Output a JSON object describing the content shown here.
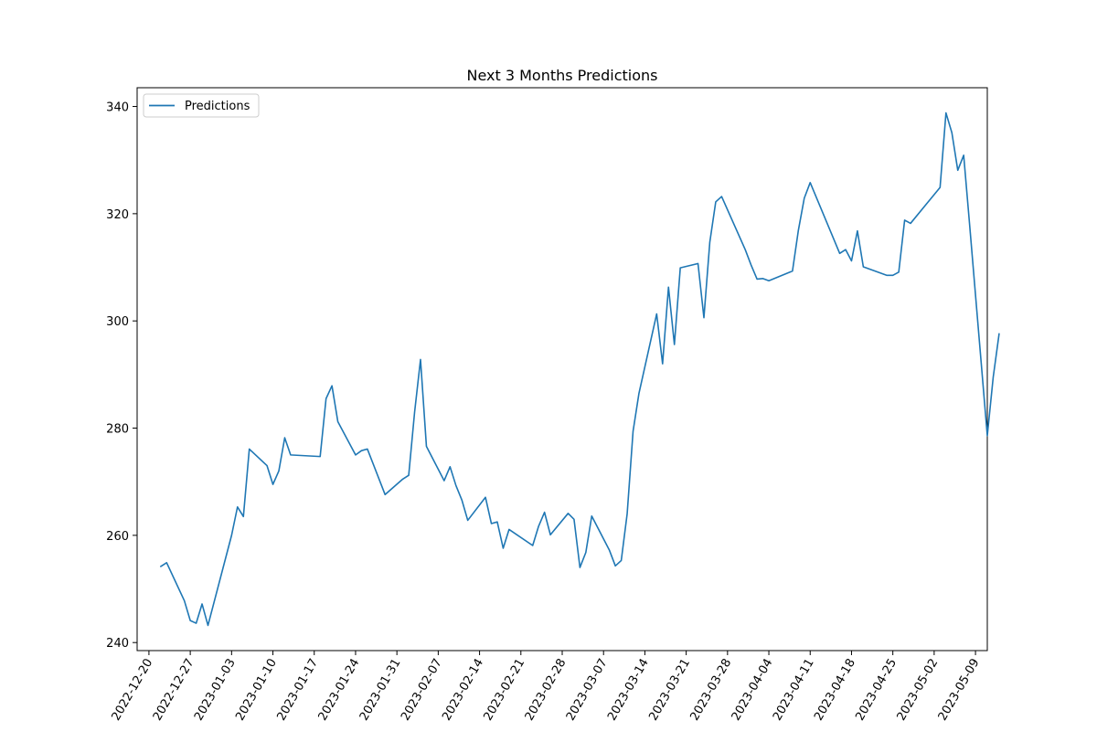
{
  "chart_data": {
    "type": "line",
    "title": "Next 3 Months Predictions",
    "xlabel": "",
    "ylabel": "",
    "ylim": [
      238.5,
      343.5
    ],
    "xlim": [
      "2022-12-18",
      "2023-05-11"
    ],
    "grid": false,
    "legend_position": "top-left",
    "x_ticks": [
      "2022-12-20",
      "2022-12-27",
      "2023-01-03",
      "2023-01-10",
      "2023-01-17",
      "2023-01-24",
      "2023-01-31",
      "2023-02-07",
      "2023-02-14",
      "2023-02-21",
      "2023-02-28",
      "2023-03-07",
      "2023-03-14",
      "2023-03-21",
      "2023-03-28",
      "2023-04-04",
      "2023-04-11",
      "2023-04-18",
      "2023-04-25",
      "2023-05-02",
      "2023-05-09"
    ],
    "y_ticks": [
      240,
      260,
      280,
      300,
      320,
      340
    ],
    "series": [
      {
        "name": "Predictions",
        "color": "#1f77b4",
        "points": [
          [
            "2022-12-22",
            254.2
          ],
          [
            "2022-12-23",
            254.9
          ],
          [
            "2022-12-26",
            247.8
          ],
          [
            "2022-12-27",
            244.1
          ],
          [
            "2022-12-28",
            243.6
          ],
          [
            "2022-12-29",
            247.2
          ],
          [
            "2022-12-30",
            243.2
          ],
          [
            "2023-01-03",
            260.0
          ],
          [
            "2023-01-04",
            265.3
          ],
          [
            "2023-01-05",
            263.5
          ],
          [
            "2023-01-06",
            276.1
          ],
          [
            "2023-01-09",
            273.0
          ],
          [
            "2023-01-10",
            269.5
          ],
          [
            "2023-01-11",
            272.0
          ],
          [
            "2023-01-12",
            278.2
          ],
          [
            "2023-01-13",
            275.0
          ],
          [
            "2023-01-18",
            274.7
          ],
          [
            "2023-01-19",
            285.5
          ],
          [
            "2023-01-20",
            287.9
          ],
          [
            "2023-01-21",
            281.2
          ],
          [
            "2023-01-24",
            275.0
          ],
          [
            "2023-01-25",
            275.8
          ],
          [
            "2023-01-26",
            276.1
          ],
          [
            "2023-01-29",
            267.6
          ],
          [
            "2023-02-01",
            270.5
          ],
          [
            "2023-02-02",
            271.2
          ],
          [
            "2023-02-03",
            283.0
          ],
          [
            "2023-02-04",
            292.8
          ],
          [
            "2023-02-05",
            276.6
          ],
          [
            "2023-02-08",
            270.2
          ],
          [
            "2023-02-09",
            272.8
          ],
          [
            "2023-02-10",
            269.3
          ],
          [
            "2023-02-11",
            266.6
          ],
          [
            "2023-02-12",
            262.8
          ],
          [
            "2023-02-15",
            267.1
          ],
          [
            "2023-02-16",
            262.2
          ],
          [
            "2023-02-17",
            262.5
          ],
          [
            "2023-02-18",
            257.6
          ],
          [
            "2023-02-19",
            261.1
          ],
          [
            "2023-02-23",
            258.1
          ],
          [
            "2023-02-24",
            261.7
          ],
          [
            "2023-02-25",
            264.3
          ],
          [
            "2023-02-26",
            260.1
          ],
          [
            "2023-03-01",
            264.1
          ],
          [
            "2023-03-02",
            263.0
          ],
          [
            "2023-03-03",
            254.0
          ],
          [
            "2023-03-04",
            256.8
          ],
          [
            "2023-03-05",
            263.6
          ],
          [
            "2023-03-08",
            257.2
          ],
          [
            "2023-03-09",
            254.3
          ],
          [
            "2023-03-10",
            255.3
          ],
          [
            "2023-03-11",
            264.0
          ],
          [
            "2023-03-12",
            279.4
          ],
          [
            "2023-03-13",
            286.5
          ],
          [
            "2023-03-16",
            301.3
          ],
          [
            "2023-03-17",
            292.0
          ],
          [
            "2023-03-18",
            306.3
          ],
          [
            "2023-03-19",
            295.6
          ],
          [
            "2023-03-20",
            309.9
          ],
          [
            "2023-03-23",
            310.7
          ],
          [
            "2023-03-24",
            300.6
          ],
          [
            "2023-03-25",
            314.7
          ],
          [
            "2023-03-26",
            322.2
          ],
          [
            "2023-03-27",
            323.2
          ],
          [
            "2023-03-31",
            313.3
          ],
          [
            "2023-04-01",
            310.4
          ],
          [
            "2023-04-02",
            307.8
          ],
          [
            "2023-04-03",
            307.9
          ],
          [
            "2023-04-04",
            307.5
          ],
          [
            "2023-04-08",
            309.3
          ],
          [
            "2023-04-09",
            316.9
          ],
          [
            "2023-04-10",
            322.9
          ],
          [
            "2023-04-11",
            325.8
          ],
          [
            "2023-04-16",
            312.6
          ],
          [
            "2023-04-17",
            313.3
          ],
          [
            "2023-04-18",
            311.2
          ],
          [
            "2023-04-19",
            316.8
          ],
          [
            "2023-04-20",
            310.1
          ],
          [
            "2023-04-24",
            308.5
          ],
          [
            "2023-04-25",
            308.5
          ],
          [
            "2023-04-26",
            309.1
          ],
          [
            "2023-04-27",
            318.8
          ],
          [
            "2023-04-28",
            318.2
          ],
          [
            "2023-05-03",
            324.9
          ],
          [
            "2023-05-04",
            338.8
          ],
          [
            "2023-05-05",
            335.1
          ],
          [
            "2023-05-06",
            328.1
          ],
          [
            "2023-05-07",
            330.9
          ],
          [
            "2023-05-08",
            318.0
          ],
          [
            "2023-05-11",
            278.6
          ],
          [
            "2023-05-12",
            289.5
          ],
          [
            "2023-05-13",
            297.6
          ]
        ]
      }
    ]
  }
}
